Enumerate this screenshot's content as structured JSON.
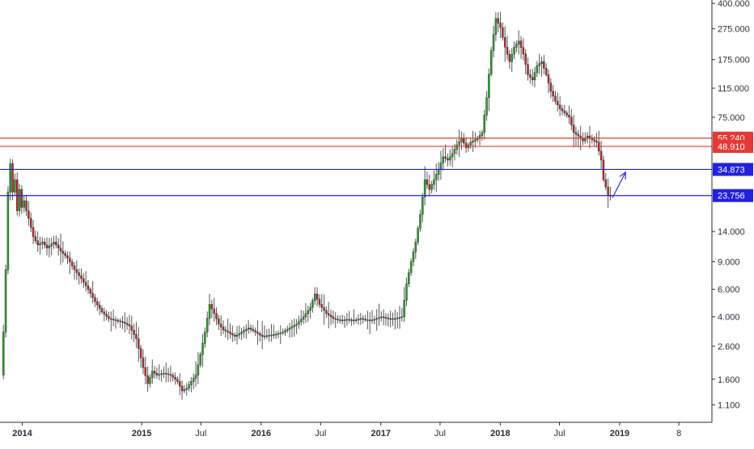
{
  "chart_data": {
    "type": "candlestick",
    "title": "",
    "xlabel": "",
    "ylabel": "",
    "y_scale": "log",
    "ylim": [
      0.85,
      420
    ],
    "xlim": [
      "2013-10-25",
      "2019-10-10"
    ],
    "grid": false,
    "legend": "none",
    "colors": {
      "up": "#26a626",
      "down": "#c62828",
      "wick": "#555555",
      "support": "#2222dd",
      "resistance": "#e53935",
      "arrow": "#3b3bd6",
      "axis": "#2a2e39"
    },
    "y_ticks": [
      "400.000",
      "275.000",
      "175.000",
      "115.000",
      "75.000",
      "14.000",
      "9.000",
      "6.000",
      "4.000",
      "2.600",
      "1.600",
      "1.100"
    ],
    "x_ticks": [
      {
        "label": "2014",
        "date": "2014-01-01",
        "bold": true
      },
      {
        "label": "2015",
        "date": "2015-01-01",
        "bold": true
      },
      {
        "label": "Jul",
        "date": "2015-07-01",
        "bold": false
      },
      {
        "label": "2016",
        "date": "2016-01-01",
        "bold": true
      },
      {
        "label": "Jul",
        "date": "2016-07-01",
        "bold": false
      },
      {
        "label": "2017",
        "date": "2017-01-01",
        "bold": true
      },
      {
        "label": "Jul",
        "date": "2017-07-01",
        "bold": false
      },
      {
        "label": "2018",
        "date": "2018-01-01",
        "bold": true
      },
      {
        "label": "Jul",
        "date": "2018-07-01",
        "bold": false
      },
      {
        "label": "2019",
        "date": "2019-01-01",
        "bold": true
      },
      {
        "label": "8",
        "date": "2019-07-01",
        "bold": false
      }
    ],
    "horizontal_lines": [
      {
        "value": 55.24,
        "label": "55.240",
        "kind": "resistance"
      },
      {
        "value": 48.91,
        "label": "48.910",
        "kind": "resistance"
      },
      {
        "value": 34.873,
        "label": "34.873",
        "kind": "support"
      },
      {
        "value": 23.756,
        "label": "23.756",
        "kind": "support"
      }
    ],
    "path": [
      [
        "2013-11-01",
        1.7
      ],
      [
        "2013-11-08",
        3.2
      ],
      [
        "2013-11-15",
        8.0
      ],
      [
        "2013-11-22",
        25.0
      ],
      [
        "2013-11-29",
        38.0
      ],
      [
        "2013-12-06",
        25.0
      ],
      [
        "2013-12-13",
        30.0
      ],
      [
        "2013-12-20",
        19.0
      ],
      [
        "2013-12-27",
        26.0
      ],
      [
        "2014-01-03",
        20.0
      ],
      [
        "2014-01-10",
        22.0
      ],
      [
        "2014-01-17",
        19.0
      ],
      [
        "2014-01-24",
        17.0
      ],
      [
        "2014-02-07",
        13.0
      ],
      [
        "2014-02-21",
        11.5
      ],
      [
        "2014-03-07",
        12.0
      ],
      [
        "2014-03-21",
        11.0
      ],
      [
        "2014-04-11",
        12.0
      ],
      [
        "2014-05-02",
        10.5
      ],
      [
        "2014-05-23",
        9.5
      ],
      [
        "2014-06-13",
        8.0
      ],
      [
        "2014-07-04",
        7.0
      ],
      [
        "2014-07-25",
        6.0
      ],
      [
        "2014-08-15",
        5.0
      ],
      [
        "2014-09-05",
        4.3
      ],
      [
        "2014-09-26",
        3.9
      ],
      [
        "2014-10-17",
        3.8
      ],
      [
        "2014-11-07",
        3.7
      ],
      [
        "2014-11-28",
        3.5
      ],
      [
        "2014-12-19",
        2.9
      ],
      [
        "2015-01-09",
        1.9
      ],
      [
        "2015-01-23",
        1.5
      ],
      [
        "2015-02-06",
        1.8
      ],
      [
        "2015-02-20",
        1.7
      ],
      [
        "2015-03-13",
        1.75
      ],
      [
        "2015-04-03",
        1.7
      ],
      [
        "2015-04-24",
        1.55
      ],
      [
        "2015-05-08",
        1.35
      ],
      [
        "2015-05-22",
        1.4
      ],
      [
        "2015-06-05",
        1.55
      ],
      [
        "2015-06-19",
        1.7
      ],
      [
        "2015-07-03",
        2.3
      ],
      [
        "2015-07-17",
        3.2
      ],
      [
        "2015-07-31",
        4.8
      ],
      [
        "2015-08-14",
        4.2
      ],
      [
        "2015-08-28",
        3.6
      ],
      [
        "2015-09-11",
        3.3
      ],
      [
        "2015-09-25",
        3.2
      ],
      [
        "2015-10-16",
        3.0
      ],
      [
        "2015-11-06",
        3.2
      ],
      [
        "2015-11-27",
        3.4
      ],
      [
        "2015-12-18",
        3.2
      ],
      [
        "2016-01-08",
        3.0
      ],
      [
        "2016-01-29",
        3.05
      ],
      [
        "2016-02-19",
        3.1
      ],
      [
        "2016-03-11",
        3.2
      ],
      [
        "2016-04-01",
        3.4
      ],
      [
        "2016-04-22",
        3.6
      ],
      [
        "2016-05-13",
        4.0
      ],
      [
        "2016-06-03",
        4.6
      ],
      [
        "2016-06-17",
        5.6
      ],
      [
        "2016-07-01",
        4.8
      ],
      [
        "2016-07-22",
        4.2
      ],
      [
        "2016-08-12",
        3.9
      ],
      [
        "2016-09-02",
        3.8
      ],
      [
        "2016-09-23",
        3.85
      ],
      [
        "2016-10-14",
        3.8
      ],
      [
        "2016-11-04",
        3.9
      ],
      [
        "2016-11-25",
        3.8
      ],
      [
        "2016-12-16",
        3.85
      ],
      [
        "2017-01-06",
        4.0
      ],
      [
        "2017-01-27",
        3.9
      ],
      [
        "2017-02-17",
        3.9
      ],
      [
        "2017-03-10",
        4.0
      ],
      [
        "2017-03-24",
        6.5
      ],
      [
        "2017-04-07",
        9.0
      ],
      [
        "2017-04-21",
        12.0
      ],
      [
        "2017-05-05",
        18.0
      ],
      [
        "2017-05-19",
        30.0
      ],
      [
        "2017-06-02",
        26.0
      ],
      [
        "2017-06-16",
        30.0
      ],
      [
        "2017-06-30",
        35.0
      ],
      [
        "2017-07-14",
        42.0
      ],
      [
        "2017-07-28",
        40.0
      ],
      [
        "2017-08-11",
        44.0
      ],
      [
        "2017-08-25",
        50.0
      ],
      [
        "2017-09-08",
        55.0
      ],
      [
        "2017-09-22",
        48.0
      ],
      [
        "2017-10-06",
        52.0
      ],
      [
        "2017-10-27",
        55.0
      ],
      [
        "2017-11-10",
        60.0
      ],
      [
        "2017-11-24",
        100.0
      ],
      [
        "2017-12-08",
        200.0
      ],
      [
        "2017-12-22",
        320.0
      ],
      [
        "2018-01-05",
        280.0
      ],
      [
        "2018-01-19",
        210.0
      ],
      [
        "2018-02-02",
        170.0
      ],
      [
        "2018-02-16",
        210.0
      ],
      [
        "2018-03-02",
        230.0
      ],
      [
        "2018-03-16",
        190.0
      ],
      [
        "2018-03-30",
        140.0
      ],
      [
        "2018-04-13",
        130.0
      ],
      [
        "2018-04-27",
        160.0
      ],
      [
        "2018-05-11",
        170.0
      ],
      [
        "2018-05-25",
        140.0
      ],
      [
        "2018-06-08",
        110.0
      ],
      [
        "2018-06-22",
        95.0
      ],
      [
        "2018-07-06",
        85.0
      ],
      [
        "2018-07-20",
        80.0
      ],
      [
        "2018-08-03",
        75.0
      ],
      [
        "2018-08-17",
        60.0
      ],
      [
        "2018-08-31",
        57.0
      ],
      [
        "2018-09-14",
        53.0
      ],
      [
        "2018-09-28",
        57.0
      ],
      [
        "2018-10-12",
        54.0
      ],
      [
        "2018-10-26",
        52.0
      ],
      [
        "2018-11-09",
        40.0
      ],
      [
        "2018-11-16",
        30.0
      ],
      [
        "2018-11-23",
        27.0
      ],
      [
        "2018-11-30",
        23.8
      ]
    ],
    "projection_arrow": {
      "from": [
        "2018-12-10",
        23.0
      ],
      "to": [
        "2019-01-19",
        33.5
      ]
    }
  }
}
